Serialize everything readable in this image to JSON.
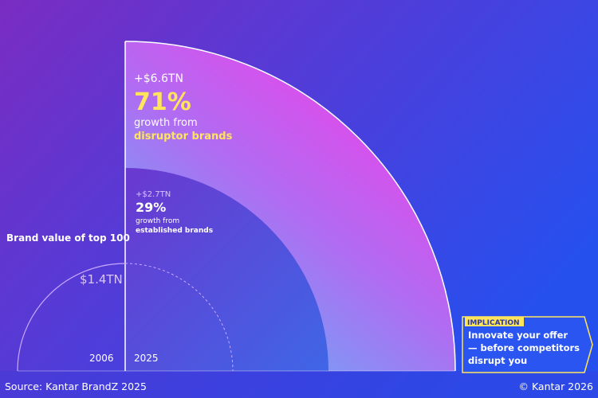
{
  "title": "Brand value of top 100",
  "base_2006": {
    "value": "$1.4TN",
    "year": "2006"
  },
  "year_2025": "2025",
  "disruptor": {
    "amount": "+$6.6TN",
    "percent": "71%",
    "line1": "growth from",
    "line2": "disruptor brands"
  },
  "established": {
    "amount": "+$2.7TN",
    "percent": "29%",
    "line1": "growth from",
    "line2": "established brands"
  },
  "implication": {
    "label": "IMPLICATION",
    "lines": [
      "Innovate your offer",
      "— before competitors",
      "disrupt you"
    ]
  },
  "footer": {
    "source": "Source: Kantar BrandZ 2025",
    "copyright": "© Kantar 2026"
  }
}
